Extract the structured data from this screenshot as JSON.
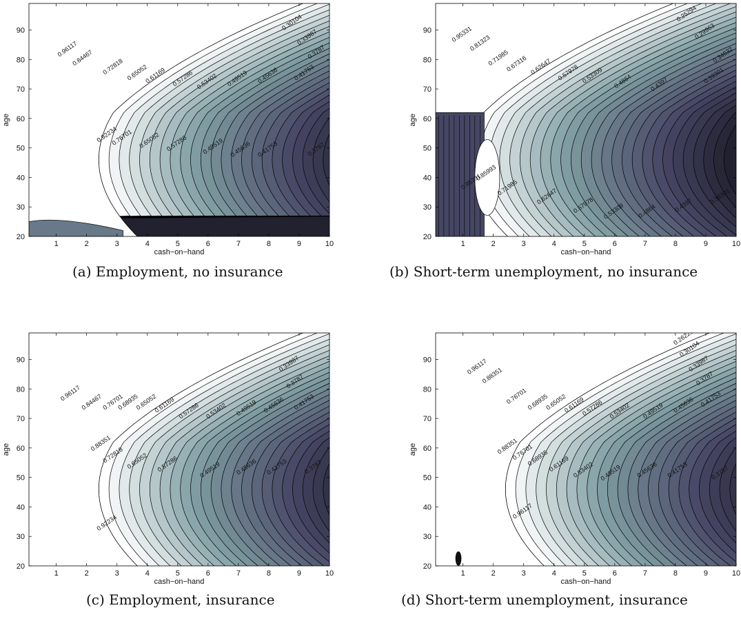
{
  "chart_data": [
    {
      "type": "heatmap",
      "subtype": "filled-contour",
      "caption": "(a) Employment, no insurance",
      "xlabel": "cash−on−hand",
      "ylabel": "age",
      "xlim": [
        0.1,
        10
      ],
      "ylim": [
        20,
        99
      ],
      "xticks": [
        "1",
        "2",
        "3",
        "4",
        "5",
        "6",
        "7",
        "8",
        "9",
        "10"
      ],
      "yticks": [
        "20",
        "30",
        "40",
        "50",
        "60",
        "70",
        "80",
        "90"
      ],
      "colormap": "bone",
      "contour_labels": [
        {
          "text": "0.96117",
          "x": 1.4,
          "y": 83
        },
        {
          "text": "0.84467",
          "x": 1.9,
          "y": 80
        },
        {
          "text": "0.72818",
          "x": 2.9,
          "y": 77
        },
        {
          "text": "0.65052",
          "x": 3.7,
          "y": 75
        },
        {
          "text": "0.61169",
          "x": 4.3,
          "y": 74
        },
        {
          "text": "0.57286",
          "x": 5.2,
          "y": 73
        },
        {
          "text": "0.53402",
          "x": 6.0,
          "y": 72
        },
        {
          "text": "0.49519",
          "x": 7.0,
          "y": 73
        },
        {
          "text": "0.45636",
          "x": 8.0,
          "y": 74
        },
        {
          "text": "0.41753",
          "x": 9.2,
          "y": 75
        },
        {
          "text": "0.3787",
          "x": 9.6,
          "y": 82
        },
        {
          "text": "0.33987",
          "x": 9.3,
          "y": 87
        },
        {
          "text": "0.30104",
          "x": 8.8,
          "y": 92
        },
        {
          "text": "0.92234",
          "x": 2.7,
          "y": 54
        },
        {
          "text": "0.76701",
          "x": 3.2,
          "y": 53
        },
        {
          "text": "0.65052",
          "x": 4.1,
          "y": 52
        },
        {
          "text": "0.57286",
          "x": 5.0,
          "y": 51
        },
        {
          "text": "0.49519",
          "x": 6.2,
          "y": 50
        },
        {
          "text": "0.45636",
          "x": 7.1,
          "y": 49
        },
        {
          "text": "0.41753",
          "x": 8.0,
          "y": 49
        },
        {
          "text": "0.3787",
          "x": 9.6,
          "y": 49
        }
      ]
    },
    {
      "type": "heatmap",
      "subtype": "filled-contour",
      "caption": "(b) Short-term unemployment, no insurance",
      "xlabel": "cash−on−hand",
      "ylabel": "age",
      "xlim": [
        0.1,
        10
      ],
      "ylim": [
        20,
        99
      ],
      "xticks": [
        "1",
        "2",
        "3",
        "4",
        "5",
        "6",
        "7",
        "8",
        "9",
        "10"
      ],
      "yticks": [
        "20",
        "30",
        "40",
        "50",
        "60",
        "70",
        "80",
        "90"
      ],
      "colormap": "bone",
      "contour_labels": [
        {
          "text": "0.95331",
          "x": 1.0,
          "y": 88
        },
        {
          "text": "0.81323",
          "x": 1.6,
          "y": 85
        },
        {
          "text": "0.71985",
          "x": 2.2,
          "y": 80
        },
        {
          "text": "0.67316",
          "x": 2.8,
          "y": 78
        },
        {
          "text": "0.62647",
          "x": 3.6,
          "y": 77
        },
        {
          "text": "0.57978",
          "x": 4.5,
          "y": 75
        },
        {
          "text": "0.53309",
          "x": 5.3,
          "y": 74
        },
        {
          "text": "0.4864",
          "x": 6.3,
          "y": 72
        },
        {
          "text": "0.4397",
          "x": 7.5,
          "y": 71
        },
        {
          "text": "0.39301",
          "x": 9.3,
          "y": 74
        },
        {
          "text": "0.34632",
          "x": 9.6,
          "y": 81
        },
        {
          "text": "0.29963",
          "x": 9.0,
          "y": 89
        },
        {
          "text": "0.25294",
          "x": 8.4,
          "y": 95
        },
        {
          "text": "0.85993",
          "x": 1.8,
          "y": 41
        },
        {
          "text": "0.95331",
          "x": 1.3,
          "y": 38
        },
        {
          "text": "0.71985",
          "x": 2.5,
          "y": 36
        },
        {
          "text": "0.62647",
          "x": 3.8,
          "y": 33
        },
        {
          "text": "0.57978",
          "x": 5.0,
          "y": 30
        },
        {
          "text": "0.53309",
          "x": 6.0,
          "y": 28
        },
        {
          "text": "0.4864",
          "x": 7.1,
          "y": 28
        },
        {
          "text": "0.4397",
          "x": 8.3,
          "y": 30
        },
        {
          "text": "0.39301",
          "x": 9.5,
          "y": 33
        }
      ]
    },
    {
      "type": "heatmap",
      "subtype": "filled-contour",
      "caption": "(c) Employment, insurance",
      "xlabel": "cash−on−hand",
      "ylabel": "age",
      "xlim": [
        0.1,
        10
      ],
      "ylim": [
        20,
        99
      ],
      "xticks": [
        "1",
        "2",
        "3",
        "4",
        "5",
        "6",
        "7",
        "8",
        "9",
        "10"
      ],
      "yticks": [
        "20",
        "30",
        "40",
        "50",
        "60",
        "70",
        "80",
        "90"
      ],
      "colormap": "bone",
      "contour_labels": [
        {
          "text": "0.96117",
          "x": 1.5,
          "y": 78
        },
        {
          "text": "0.84467",
          "x": 2.2,
          "y": 75
        },
        {
          "text": "0.76701",
          "x": 2.9,
          "y": 75
        },
        {
          "text": "0.68935",
          "x": 3.4,
          "y": 75
        },
        {
          "text": "0.65052",
          "x": 4.0,
          "y": 75
        },
        {
          "text": "0.61169",
          "x": 4.6,
          "y": 74
        },
        {
          "text": "0.57286",
          "x": 5.4,
          "y": 72
        },
        {
          "text": "0.53402",
          "x": 6.3,
          "y": 72
        },
        {
          "text": "0.49519",
          "x": 7.3,
          "y": 73
        },
        {
          "text": "0.45636",
          "x": 8.2,
          "y": 74
        },
        {
          "text": "0.41753",
          "x": 9.2,
          "y": 75
        },
        {
          "text": "0.3787",
          "x": 8.9,
          "y": 82
        },
        {
          "text": "0.33987",
          "x": 8.7,
          "y": 88
        },
        {
          "text": "0.88351",
          "x": 2.5,
          "y": 61
        },
        {
          "text": "0.72818",
          "x": 2.9,
          "y": 57
        },
        {
          "text": "0.65052",
          "x": 3.7,
          "y": 55
        },
        {
          "text": "0.57286",
          "x": 4.7,
          "y": 54
        },
        {
          "text": "0.49519",
          "x": 6.1,
          "y": 52
        },
        {
          "text": "0.45636",
          "x": 7.3,
          "y": 53
        },
        {
          "text": "0.41753",
          "x": 8.3,
          "y": 53
        },
        {
          "text": "0.3787",
          "x": 9.5,
          "y": 53
        },
        {
          "text": "0.92234",
          "x": 2.7,
          "y": 34
        }
      ]
    },
    {
      "type": "heatmap",
      "subtype": "filled-contour",
      "caption": "(d) Short-term unemployment, insurance",
      "xlabel": "cash−on−hand",
      "ylabel": "age",
      "xlim": [
        0.1,
        10
      ],
      "ylim": [
        20,
        99
      ],
      "xticks": [
        "1",
        "2",
        "3",
        "4",
        "5",
        "6",
        "7",
        "8",
        "9",
        "10"
      ],
      "yticks": [
        "20",
        "30",
        "40",
        "50",
        "60",
        "70",
        "80",
        "90"
      ],
      "colormap": "bone",
      "contour_labels": [
        {
          "text": "0.96117",
          "x": 1.5,
          "y": 87
        },
        {
          "text": "0.88351",
          "x": 2.0,
          "y": 84
        },
        {
          "text": "0.76701",
          "x": 2.8,
          "y": 77
        },
        {
          "text": "0.68935",
          "x": 3.5,
          "y": 75
        },
        {
          "text": "0.65052",
          "x": 4.1,
          "y": 75
        },
        {
          "text": "0.61169",
          "x": 4.7,
          "y": 74
        },
        {
          "text": "0.57286",
          "x": 5.3,
          "y": 73
        },
        {
          "text": "0.53402",
          "x": 6.2,
          "y": 72
        },
        {
          "text": "0.49519",
          "x": 7.3,
          "y": 72
        },
        {
          "text": "0.45636",
          "x": 8.3,
          "y": 74
        },
        {
          "text": "0.41753",
          "x": 9.2,
          "y": 76
        },
        {
          "text": "0.3787",
          "x": 9.0,
          "y": 83
        },
        {
          "text": "0.33987",
          "x": 8.8,
          "y": 88
        },
        {
          "text": "0.30104",
          "x": 8.5,
          "y": 93
        },
        {
          "text": "0.26221",
          "x": 8.3,
          "y": 97
        },
        {
          "text": "0.88351",
          "x": 2.5,
          "y": 60
        },
        {
          "text": "0.76701",
          "x": 3.0,
          "y": 58
        },
        {
          "text": "0.68935",
          "x": 3.5,
          "y": 56
        },
        {
          "text": "0.61169",
          "x": 4.2,
          "y": 54
        },
        {
          "text": "0.53402",
          "x": 5.0,
          "y": 52
        },
        {
          "text": "0.49519",
          "x": 5.9,
          "y": 51
        },
        {
          "text": "0.45636",
          "x": 7.1,
          "y": 52
        },
        {
          "text": "0.41753",
          "x": 8.1,
          "y": 52
        },
        {
          "text": "0.3787",
          "x": 9.5,
          "y": 51
        },
        {
          "text": "0.96117",
          "x": 3.0,
          "y": 38
        }
      ]
    }
  ]
}
